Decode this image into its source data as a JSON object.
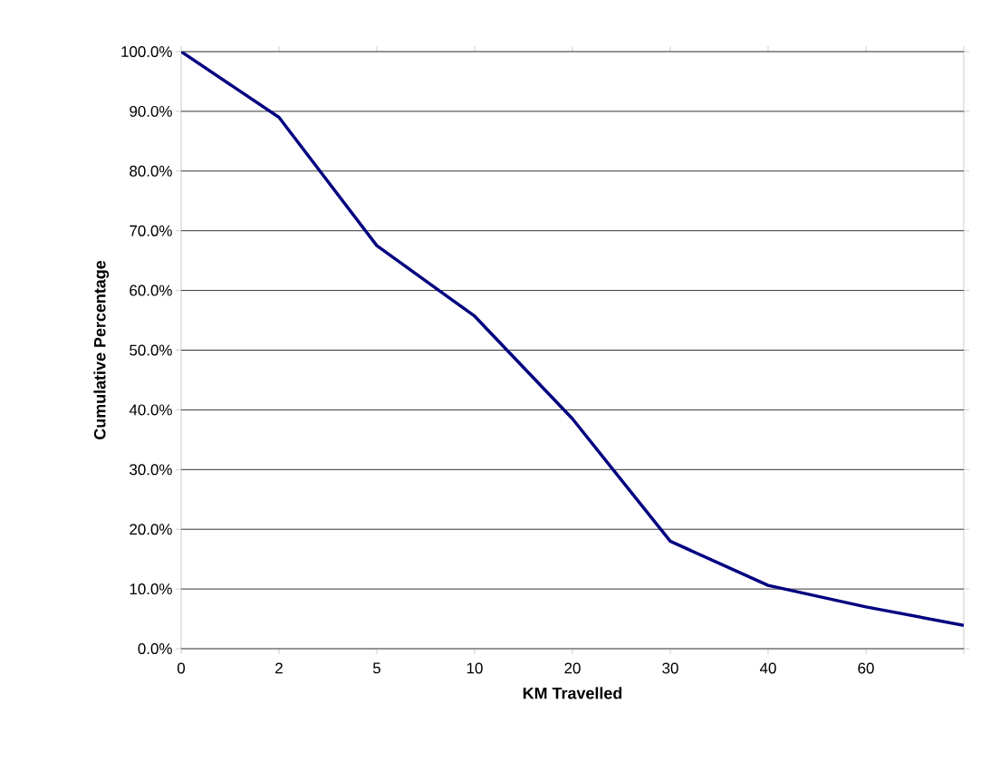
{
  "chart_data": {
    "type": "line",
    "xlabel": "KM Travelled",
    "ylabel": "Cumulative Percentage",
    "categories": [
      "0",
      "2",
      "5",
      "10",
      "20",
      "30",
      "40",
      "60",
      null
    ],
    "series": [
      {
        "color": "#000080",
        "values": [
          100,
          89,
          67.5,
          55.7,
          38.5,
          18,
          10.6,
          7,
          3.9
        ]
      }
    ],
    "ylim": [
      0,
      100
    ],
    "yticks": [
      {
        "value": 0,
        "label": "0.0%"
      },
      {
        "value": 10,
        "label": "10.0%"
      },
      {
        "value": 20,
        "label": "20.0%"
      },
      {
        "value": 30,
        "label": "30.0%"
      },
      {
        "value": 40,
        "label": "40.0%"
      },
      {
        "value": 50,
        "label": "50.0%"
      },
      {
        "value": 60,
        "label": "60.0%"
      },
      {
        "value": 70,
        "label": "70.0%"
      },
      {
        "value": 80,
        "label": "80.0%"
      },
      {
        "value": 90,
        "label": "90.0%"
      },
      {
        "value": 100,
        "label": "100.0%"
      }
    ],
    "grid": "y",
    "marker": "none",
    "line_style": "solid"
  }
}
